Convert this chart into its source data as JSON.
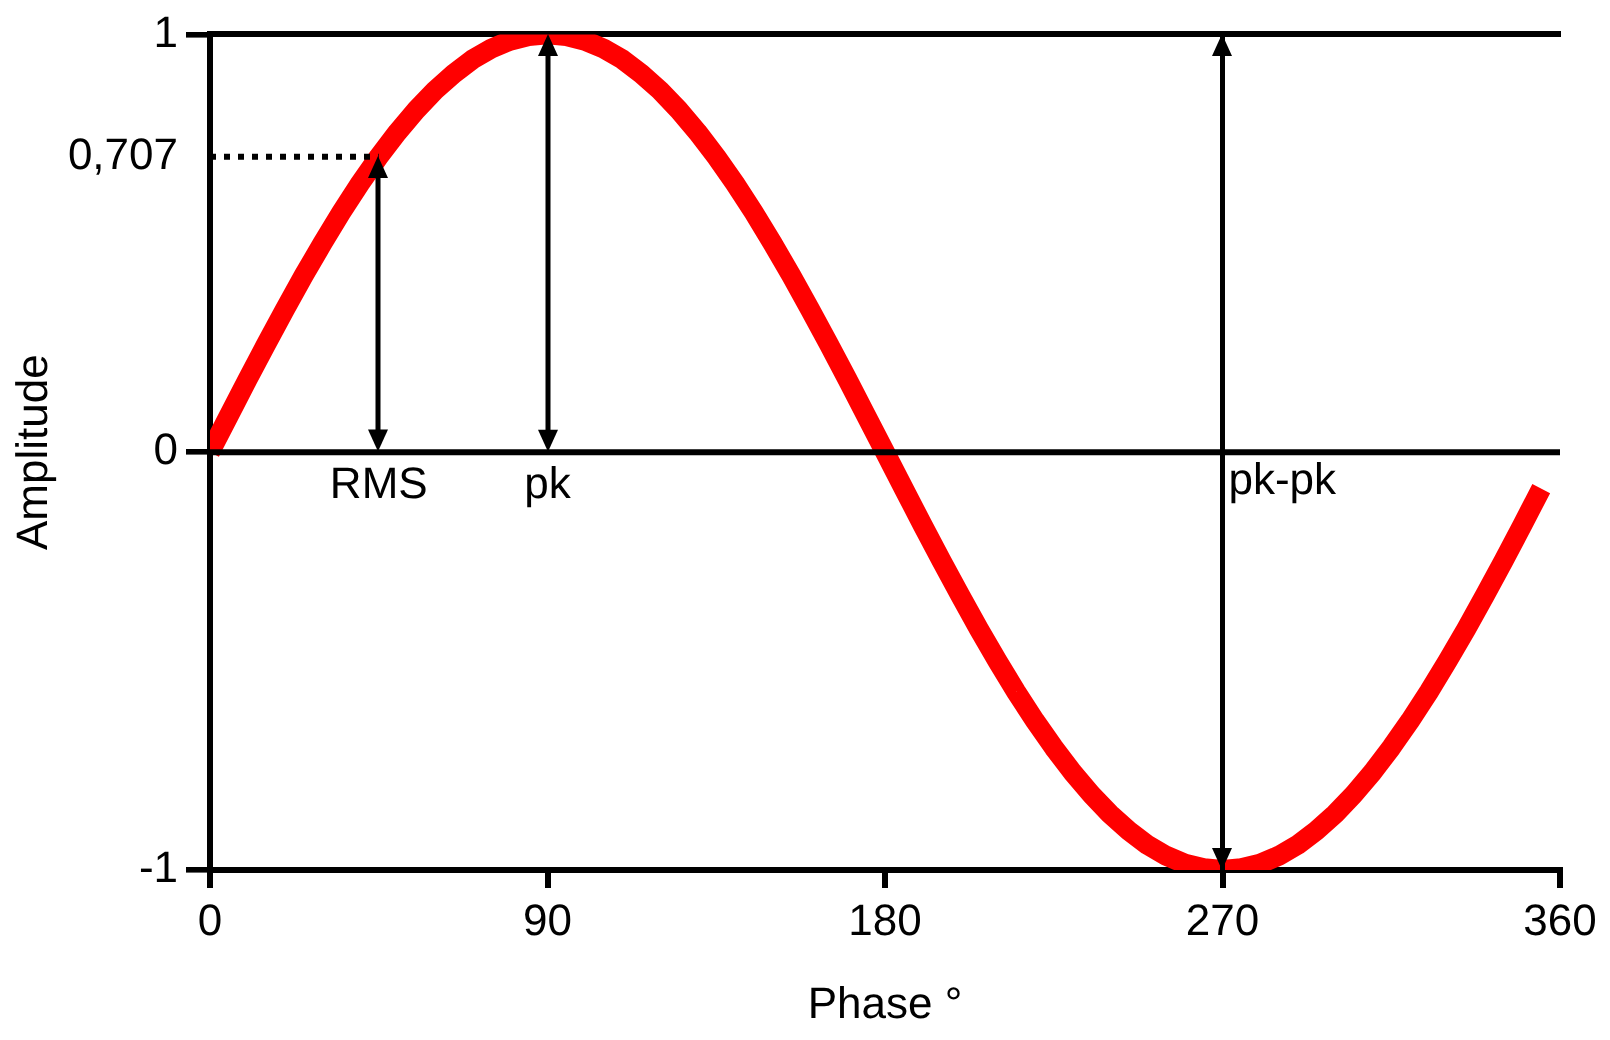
{
  "chart_data": {
    "type": "line",
    "xlabel": "Phase °",
    "ylabel": "Amplitude",
    "x": [
      0,
      5,
      10,
      15,
      20,
      25,
      30,
      35,
      40,
      45,
      50,
      55,
      60,
      65,
      70,
      75,
      80,
      85,
      90,
      95,
      100,
      105,
      110,
      115,
      120,
      125,
      130,
      135,
      140,
      145,
      150,
      155,
      160,
      165,
      170,
      175,
      180,
      185,
      190,
      195,
      200,
      205,
      210,
      215,
      220,
      225,
      230,
      235,
      240,
      245,
      250,
      255,
      260,
      265,
      270,
      275,
      280,
      285,
      290,
      295,
      300,
      305,
      310,
      315,
      320,
      325,
      330,
      335,
      340,
      345,
      350,
      355
    ],
    "series": [
      {
        "color": "#ff0000",
        "values": [
          0,
          0.087,
          0.174,
          0.259,
          0.342,
          0.423,
          0.5,
          0.574,
          0.643,
          0.707,
          0.766,
          0.819,
          0.866,
          0.906,
          0.94,
          0.966,
          0.985,
          0.996,
          1,
          0.996,
          0.985,
          0.966,
          0.94,
          0.906,
          0.866,
          0.819,
          0.766,
          0.707,
          0.643,
          0.574,
          0.5,
          0.423,
          0.342,
          0.259,
          0.174,
          0.087,
          0,
          -0.087,
          -0.174,
          -0.259,
          -0.342,
          -0.423,
          -0.5,
          -0.574,
          -0.643,
          -0.707,
          -0.766,
          -0.819,
          -0.866,
          -0.906,
          -0.94,
          -0.966,
          -0.985,
          -0.996,
          -1,
          -0.996,
          -0.985,
          -0.966,
          -0.94,
          -0.906,
          -0.866,
          -0.819,
          -0.766,
          -0.707,
          -0.643,
          -0.574,
          -0.5,
          -0.423,
          -0.342,
          -0.259,
          -0.174,
          -0.087
        ]
      }
    ],
    "xlim": [
      0,
      360
    ],
    "xticks": [
      0,
      90,
      180,
      270,
      360
    ],
    "ylim": [
      -1,
      1
    ],
    "yticks": [
      -1,
      0,
      1
    ],
    "marker": "none",
    "line_style": "solid",
    "ref_lines": [
      {
        "axis": "y",
        "value": 0,
        "color": "#000000",
        "line_style": "solid"
      },
      {
        "axis": "y",
        "value": 0.707,
        "color": "#000000",
        "line_style": "dotted",
        "label": "0,707"
      },
      {
        "axis": "x",
        "value": 270,
        "color": "#000000",
        "line_style": "solid",
        "label": "pk-pk"
      }
    ],
    "annotations": [
      {
        "text": "RMS",
        "x": 45,
        "y": 0.707
      },
      {
        "text": "pk",
        "x": 90,
        "y": 1
      }
    ]
  }
}
